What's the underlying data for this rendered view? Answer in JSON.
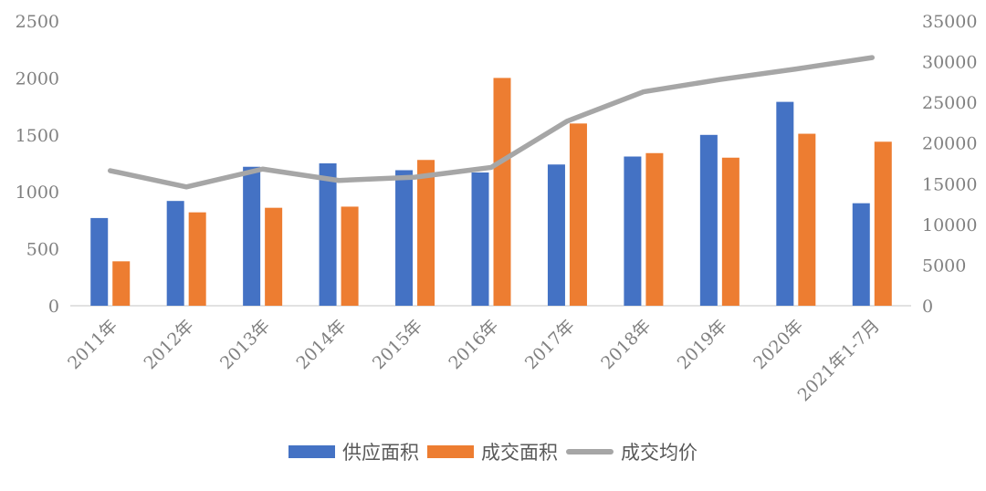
{
  "chart_data": {
    "type": "bar",
    "subtype": "grouped-bars-with-line-overlay",
    "categories": [
      "2011年",
      "2012年",
      "2013年",
      "2014年",
      "2015年",
      "2016年",
      "2017年",
      "2018年",
      "2019年",
      "2020年",
      "2021年1-7月"
    ],
    "series": [
      {
        "name": "供应面积",
        "type": "bar",
        "axis": "left",
        "color": "#4472C4",
        "values": [
          770,
          920,
          1220,
          1250,
          1190,
          1170,
          1240,
          1310,
          1500,
          1790,
          900
        ]
      },
      {
        "name": "成交面积",
        "type": "bar",
        "axis": "left",
        "color": "#ED7D31",
        "values": [
          390,
          820,
          860,
          870,
          1280,
          2000,
          1600,
          1340,
          1300,
          1510,
          1440
        ]
      },
      {
        "name": "成交均价",
        "type": "line",
        "axis": "right",
        "color": "#A6A6A6",
        "values": [
          16600,
          14600,
          16800,
          15400,
          15800,
          17000,
          22700,
          26300,
          27800,
          29100,
          30500
        ]
      }
    ],
    "left_axis": {
      "min": 0,
      "max": 2500,
      "step": 500,
      "ticks": [
        "0",
        "500",
        "1000",
        "1500",
        "2000",
        "2500"
      ]
    },
    "right_axis": {
      "min": 0,
      "max": 35000,
      "step": 5000,
      "ticks": [
        "0",
        "5000",
        "10000",
        "15000",
        "20000",
        "25000",
        "30000",
        "35000"
      ]
    },
    "grid": false,
    "legend_position": "bottom",
    "x_label_rotation_deg": -45
  },
  "colors": {
    "axis_text": "#808080",
    "axis_line": "#D9D9D9",
    "legend_text": "#595959"
  }
}
